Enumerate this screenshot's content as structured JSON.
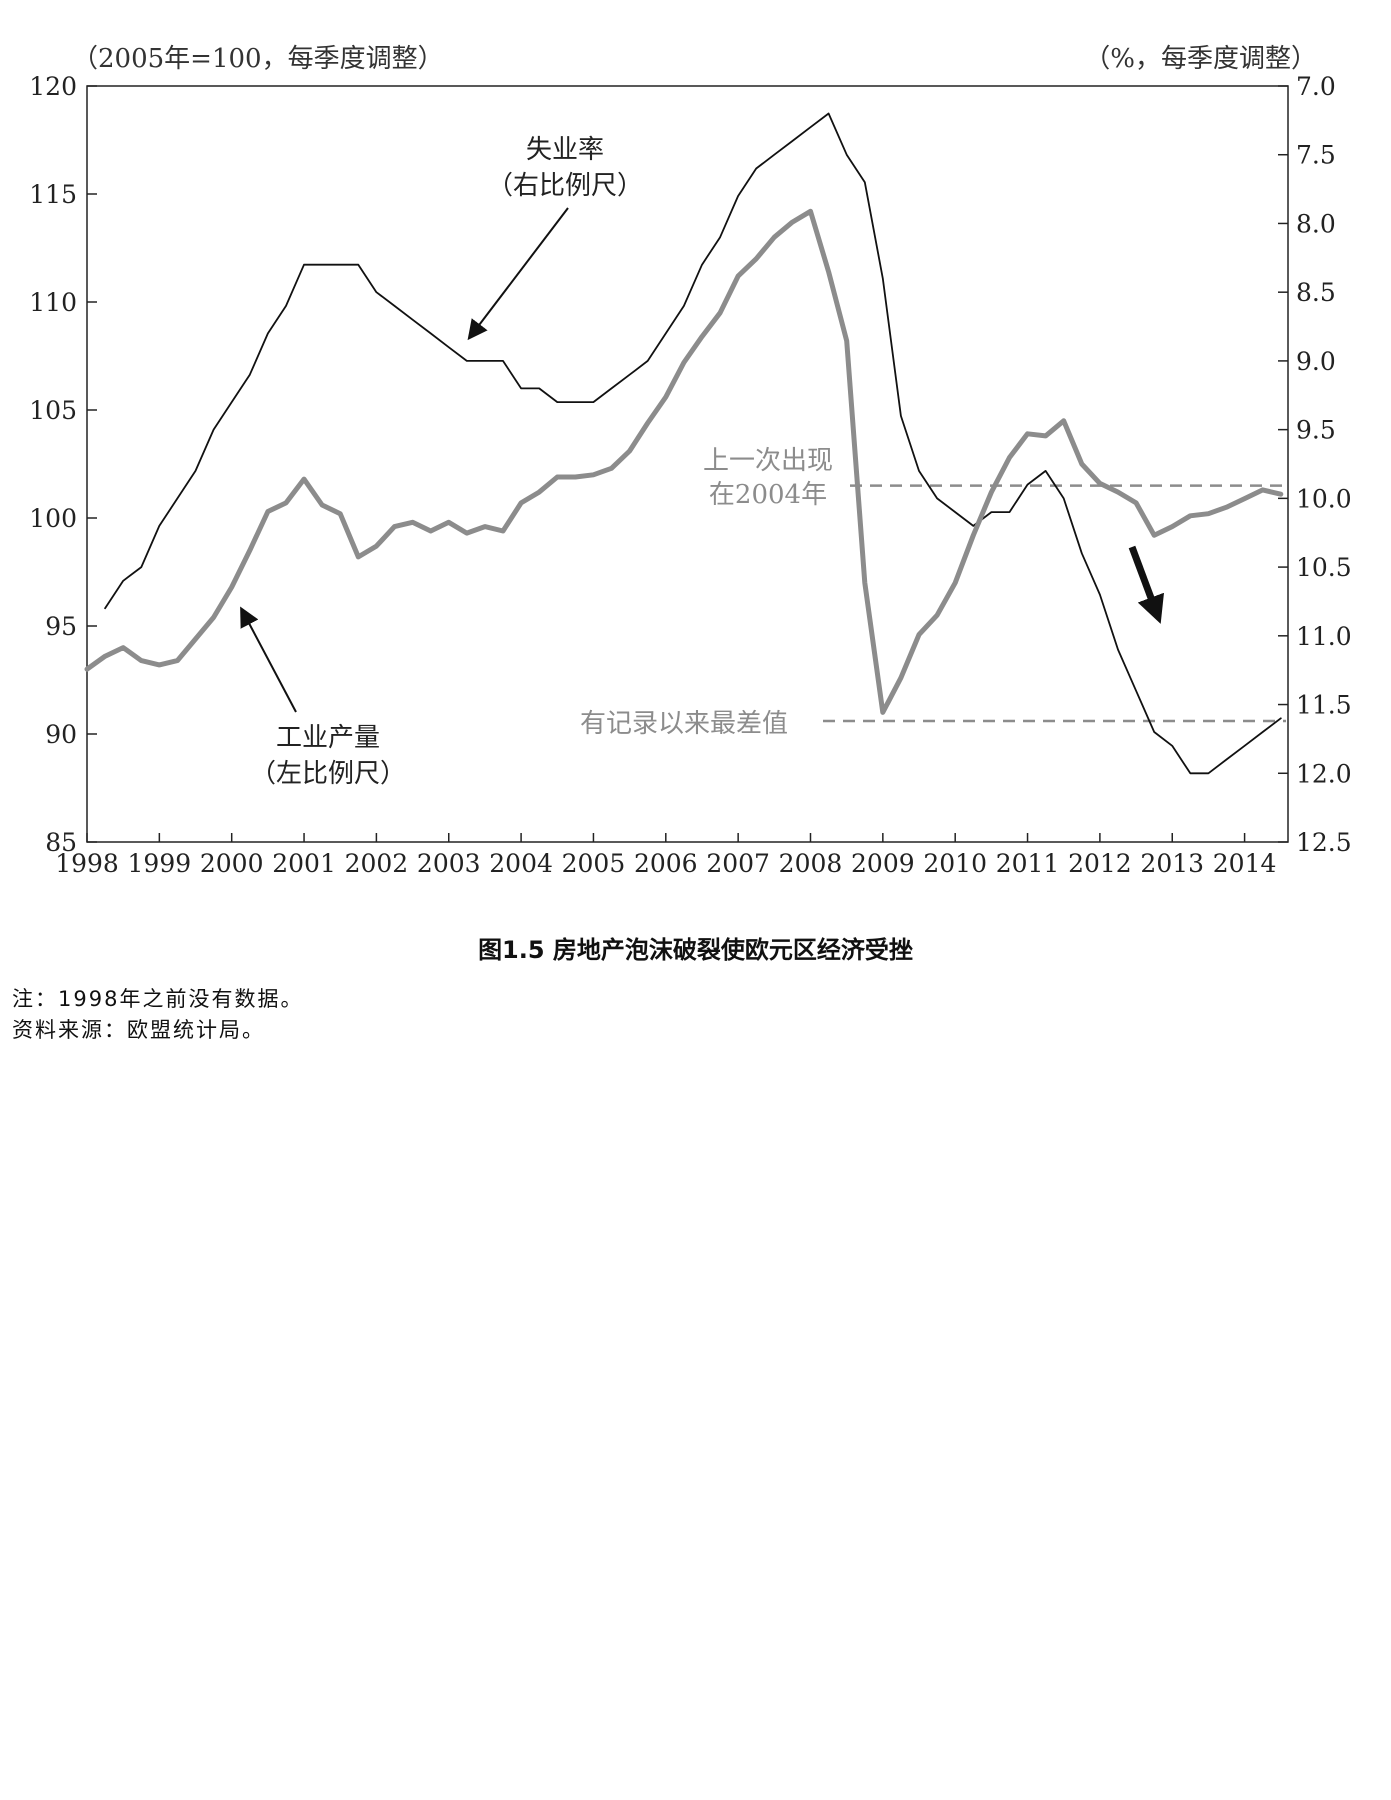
{
  "chart_data": {
    "type": "line",
    "left_axis_title": "（2005年=100，每季度调整）",
    "right_axis_title": "（%，每季度调整）",
    "x_ticks": [
      "1998",
      "1999",
      "2000",
      "2001",
      "2002",
      "2003",
      "2004",
      "2005",
      "2006",
      "2007",
      "2008",
      "2009",
      "2010",
      "2011",
      "2012",
      "2013",
      "2014"
    ],
    "xlim": [
      1998,
      2014.6
    ],
    "left_ylim": [
      85,
      120
    ],
    "left_ticks": [
      "85",
      "90",
      "95",
      "100",
      "105",
      "110",
      "115",
      "120"
    ],
    "right_ylim": [
      12.5,
      7.0
    ],
    "right_ticks": [
      "7.0",
      "7.5",
      "8.0",
      "8.5",
      "9.0",
      "9.5",
      "10.0",
      "10.5",
      "11.0",
      "11.5",
      "12.0",
      "12.5"
    ],
    "series": [
      {
        "name": "失业率",
        "axis": "right",
        "color": "#111111",
        "x": [
          1998.25,
          1998.5,
          1998.75,
          1999.0,
          1999.25,
          1999.5,
          1999.75,
          2000.0,
          2000.25,
          2000.5,
          2000.75,
          2001.0,
          2001.25,
          2001.5,
          2001.75,
          2002.0,
          2002.25,
          2002.5,
          2002.75,
          2003.0,
          2003.25,
          2003.5,
          2003.75,
          2004.0,
          2004.25,
          2004.5,
          2004.75,
          2005.0,
          2005.25,
          2005.5,
          2005.75,
          2006.0,
          2006.25,
          2006.5,
          2006.75,
          2007.0,
          2007.25,
          2007.5,
          2007.75,
          2008.0,
          2008.25,
          2008.5,
          2008.75,
          2009.0,
          2009.25,
          2009.5,
          2009.75,
          2010.0,
          2010.25,
          2010.5,
          2010.75,
          2011.0,
          2011.25,
          2011.5,
          2011.75,
          2012.0,
          2012.25,
          2012.5,
          2012.75,
          2013.0,
          2013.25,
          2013.5,
          2013.75,
          2014.0,
          2014.25,
          2014.5
        ],
        "values": [
          10.8,
          10.6,
          10.5,
          10.2,
          10.0,
          9.8,
          9.5,
          9.3,
          9.1,
          8.8,
          8.6,
          8.3,
          8.3,
          8.3,
          8.3,
          8.5,
          8.6,
          8.7,
          8.8,
          8.9,
          9.0,
          9.0,
          9.0,
          9.2,
          9.2,
          9.3,
          9.3,
          9.3,
          9.2,
          9.1,
          9.0,
          8.8,
          8.6,
          8.3,
          8.1,
          7.8,
          7.6,
          7.5,
          7.4,
          7.3,
          7.2,
          7.5,
          7.7,
          8.4,
          9.4,
          9.8,
          10.0,
          10.1,
          10.2,
          10.1,
          10.1,
          9.9,
          9.8,
          10.0,
          10.4,
          10.7,
          11.1,
          11.4,
          11.7,
          11.8,
          12.0,
          12.0,
          11.9,
          11.8,
          11.7,
          11.6
        ]
      },
      {
        "name": "工业产量",
        "axis": "left",
        "color": "#8c8c8c",
        "x": [
          1998.0,
          1998.25,
          1998.5,
          1998.75,
          1999.0,
          1999.25,
          1999.5,
          1999.75,
          2000.0,
          2000.25,
          2000.5,
          2000.75,
          2001.0,
          2001.25,
          2001.5,
          2001.75,
          2002.0,
          2002.25,
          2002.5,
          2002.75,
          2003.0,
          2003.25,
          2003.5,
          2003.75,
          2004.0,
          2004.25,
          2004.5,
          2004.75,
          2005.0,
          2005.25,
          2005.5,
          2005.75,
          2006.0,
          2006.25,
          2006.5,
          2006.75,
          2007.0,
          2007.25,
          2007.5,
          2007.75,
          2008.0,
          2008.25,
          2008.5,
          2008.75,
          2009.0,
          2009.25,
          2009.5,
          2009.75,
          2010.0,
          2010.25,
          2010.5,
          2010.75,
          2011.0,
          2011.25,
          2011.5,
          2011.75,
          2012.0,
          2012.25,
          2012.5,
          2012.75,
          2013.0,
          2013.25,
          2013.5,
          2013.75,
          2014.0,
          2014.25,
          2014.5
        ],
        "values": [
          93.0,
          93.6,
          94.0,
          93.4,
          93.2,
          93.4,
          94.4,
          95.4,
          96.8,
          98.5,
          100.3,
          100.7,
          101.8,
          100.6,
          100.2,
          98.2,
          98.7,
          99.6,
          99.8,
          99.4,
          99.8,
          99.3,
          99.6,
          99.4,
          100.7,
          101.2,
          101.9,
          101.9,
          102.0,
          102.3,
          103.1,
          104.4,
          105.6,
          107.2,
          108.4,
          109.5,
          111.2,
          112.0,
          113.0,
          113.7,
          114.2,
          111.4,
          108.2,
          97.0,
          91.0,
          92.6,
          94.6,
          95.5,
          97.0,
          99.2,
          101.2,
          102.8,
          103.9,
          103.8,
          104.5,
          102.5,
          101.6,
          101.2,
          100.7,
          99.2,
          99.6,
          100.1,
          100.2,
          100.5,
          100.9,
          101.3,
          101.1
        ]
      }
    ],
    "annotations": {
      "unemployment_label_1": "失业率",
      "unemployment_label_2": "（右比例尺）",
      "production_label_1": "工业产量",
      "production_label_2": "（左比例尺）",
      "ref_2004_label_1": "上一次出现",
      "ref_2004_label_2": "在2004年",
      "worst_label": "有记录以来最差值"
    },
    "reference_lines": [
      {
        "label_key": "ref_2004",
        "left_value": 101.5
      },
      {
        "label_key": "worst",
        "left_value": 90.6
      }
    ],
    "grid": false
  },
  "caption": "图1.5 房地产泡沫破裂使欧元区经济受挫",
  "notes": [
    "注：1998年之前没有数据。",
    "资料来源：欧盟统计局。"
  ]
}
